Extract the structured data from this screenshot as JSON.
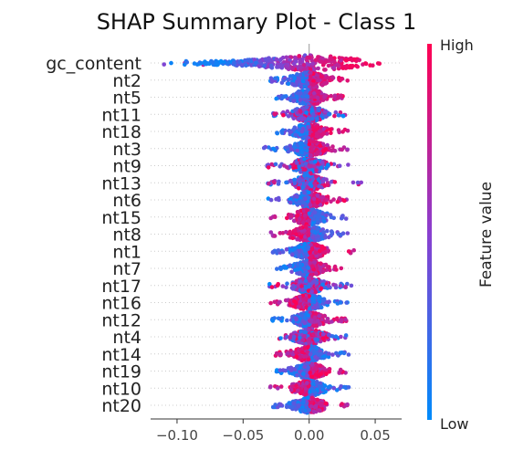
{
  "chart_data": {
    "type": "scatter",
    "subtype": "shap-beeswarm",
    "title": "SHAP Summary Plot - Class 1",
    "xlabel": "",
    "ylabel": "",
    "xlim": [
      -0.12,
      0.07
    ],
    "xticks": [
      {
        "value": -0.1,
        "label": "−0.10"
      },
      {
        "value": -0.05,
        "label": "−0.05"
      },
      {
        "value": 0.0,
        "label": "0.00"
      },
      {
        "value": 0.05,
        "label": "0.05"
      }
    ],
    "zero_line": true,
    "colorbar": {
      "label": "Feature value",
      "high_label": "High",
      "low_label": "Low",
      "high_color": "#ff0052",
      "low_color": "#008bfb"
    },
    "features": [
      {
        "name": "gc_content",
        "min": -0.113,
        "max": 0.063,
        "mode": "gc",
        "spread": 0.04
      },
      {
        "name": "nt2",
        "min": -0.03,
        "max": 0.03,
        "mode": "pos_high",
        "spread": 0.015
      },
      {
        "name": "nt5",
        "min": -0.025,
        "max": 0.027,
        "mode": "pos_high",
        "spread": 0.013
      },
      {
        "name": "nt11",
        "min": -0.028,
        "max": 0.028,
        "mode": "mixed",
        "spread": 0.013
      },
      {
        "name": "nt18",
        "min": -0.025,
        "max": 0.03,
        "mode": "pos_high",
        "spread": 0.012
      },
      {
        "name": "nt3",
        "min": -0.035,
        "max": 0.033,
        "mode": "pos_high",
        "spread": 0.013
      },
      {
        "name": "nt9",
        "min": -0.032,
        "max": 0.03,
        "mode": "mixed",
        "spread": 0.013
      },
      {
        "name": "nt13",
        "min": -0.032,
        "max": 0.04,
        "mode": "mixed",
        "spread": 0.012
      },
      {
        "name": "nt6",
        "min": -0.032,
        "max": 0.03,
        "mode": "pos_high",
        "spread": 0.012
      },
      {
        "name": "nt15",
        "min": -0.03,
        "max": 0.03,
        "mode": "neg_high",
        "spread": 0.013
      },
      {
        "name": "nt8",
        "min": -0.03,
        "max": 0.03,
        "mode": "neg_high",
        "spread": 0.013
      },
      {
        "name": "nt1",
        "min": -0.03,
        "max": 0.035,
        "mode": "pos_high",
        "spread": 0.012
      },
      {
        "name": "nt7",
        "min": -0.025,
        "max": 0.025,
        "mode": "pos_high",
        "spread": 0.012
      },
      {
        "name": "nt17",
        "min": -0.03,
        "max": 0.032,
        "mode": "mixed",
        "spread": 0.012
      },
      {
        "name": "nt16",
        "min": -0.03,
        "max": 0.03,
        "mode": "neg_high",
        "spread": 0.012
      },
      {
        "name": "nt12",
        "min": -0.028,
        "max": 0.03,
        "mode": "pos_high",
        "spread": 0.012
      },
      {
        "name": "nt4",
        "min": -0.025,
        "max": 0.028,
        "mode": "mixed",
        "spread": 0.012
      },
      {
        "name": "nt14",
        "min": -0.03,
        "max": 0.03,
        "mode": "neg_high",
        "spread": 0.012
      },
      {
        "name": "nt19",
        "min": -0.025,
        "max": 0.028,
        "mode": "pos_high",
        "spread": 0.012
      },
      {
        "name": "nt10",
        "min": -0.03,
        "max": 0.03,
        "mode": "neg_high",
        "spread": 0.012
      },
      {
        "name": "nt20",
        "min": -0.028,
        "max": 0.03,
        "mode": "pos_high",
        "spread": 0.012
      }
    ]
  }
}
